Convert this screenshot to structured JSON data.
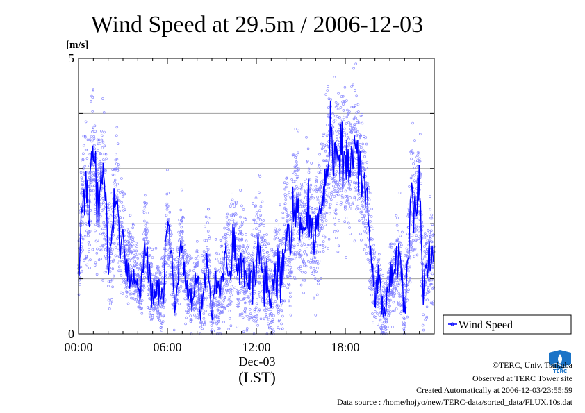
{
  "chart_data": {
    "type": "line",
    "title": "Wind Speed at 29.5m / 2006-12-03",
    "ylabel": "[m/s]",
    "xlabel_date": "Dec-03",
    "xlabel_tz": "(LST)",
    "ylim": [
      0,
      5
    ],
    "xlim_hours": [
      0,
      24
    ],
    "x_ticks": [
      "00:00",
      "06:00",
      "12:00",
      "18:00"
    ],
    "x_tick_hours": [
      0,
      6,
      12,
      18
    ],
    "y_tick_labels": [
      "0",
      "5"
    ],
    "y_gridlines": [
      1,
      2,
      3,
      4
    ],
    "legend": {
      "label": "Wind Speed",
      "placement": "right, outside plot"
    },
    "series": [
      {
        "name": "Wind Speed",
        "color": "#0000ff",
        "scatter_color": "#8080ff",
        "hours": [
          0.0,
          0.25,
          0.5,
          0.75,
          1.0,
          1.25,
          1.5,
          1.75,
          2.0,
          2.25,
          2.5,
          2.75,
          3.0,
          3.25,
          3.5,
          3.75,
          4.0,
          4.25,
          4.5,
          4.75,
          5.0,
          5.25,
          5.5,
          5.75,
          6.0,
          6.25,
          6.5,
          6.75,
          7.0,
          7.25,
          7.5,
          7.75,
          8.0,
          8.25,
          8.5,
          8.75,
          9.0,
          9.25,
          9.5,
          9.75,
          10.0,
          10.25,
          10.5,
          10.75,
          11.0,
          11.25,
          11.5,
          11.75,
          12.0,
          12.25,
          12.5,
          12.75,
          13.0,
          13.25,
          13.5,
          13.75,
          14.0,
          14.25,
          14.5,
          14.75,
          15.0,
          15.25,
          15.5,
          15.75,
          16.0,
          16.25,
          16.5,
          16.75,
          17.0,
          17.25,
          17.5,
          17.75,
          18.0,
          18.25,
          18.5,
          18.75,
          19.0,
          19.25,
          19.5,
          19.75,
          20.0,
          20.25,
          20.5,
          20.75,
          21.0,
          21.25,
          21.5,
          21.75,
          22.0,
          22.25,
          22.5,
          22.75,
          23.0,
          23.25,
          23.5,
          23.75
        ],
        "values": [
          0.9,
          2.4,
          2.6,
          2.2,
          3.5,
          2.3,
          2.6,
          2.8,
          1.4,
          1.6,
          2.7,
          1.9,
          1.7,
          1.2,
          1.3,
          1.1,
          0.9,
          0.8,
          1.9,
          1.0,
          0.7,
          0.8,
          0.7,
          0.7,
          2.2,
          1.4,
          0.6,
          1.2,
          1.7,
          1.0,
          0.7,
          0.7,
          1.1,
          0.4,
          1.0,
          1.4,
          0.3,
          0.9,
          0.7,
          1.1,
          1.4,
          1.2,
          1.8,
          1.0,
          1.4,
          1.0,
          0.8,
          1.1,
          1.3,
          1.6,
          1.2,
          0.9,
          0.6,
          1.2,
          1.1,
          1.0,
          2.0,
          1.5,
          2.1,
          2.4,
          1.8,
          1.9,
          2.3,
          1.8,
          1.7,
          2.3,
          2.4,
          2.9,
          3.4,
          3.1,
          3.0,
          3.3,
          3.1,
          3.0,
          3.4,
          3.3,
          3.0,
          2.6,
          2.3,
          1.3,
          0.7,
          1.0,
          0.4,
          0.5,
          1.0,
          0.9,
          1.4,
          1.2,
          0.4,
          1.5,
          2.6,
          2.3,
          2.9,
          0.9,
          1.3,
          1.4
        ],
        "noise_spread": [
          0.4,
          0.7,
          0.8,
          0.8,
          1.0,
          0.8,
          0.9,
          0.9,
          0.6,
          0.6,
          0.8,
          0.7,
          0.6,
          0.5,
          0.5,
          0.5,
          0.4,
          0.4,
          0.6,
          0.5,
          0.4,
          0.4,
          0.4,
          0.4,
          0.6,
          0.5,
          0.4,
          0.5,
          0.6,
          0.5,
          0.4,
          0.4,
          0.5,
          0.4,
          0.5,
          0.6,
          0.3,
          0.5,
          0.5,
          0.6,
          0.7,
          0.7,
          0.8,
          0.6,
          0.7,
          0.6,
          0.6,
          0.7,
          0.8,
          0.8,
          0.7,
          0.7,
          0.6,
          0.7,
          0.7,
          0.7,
          0.8,
          0.7,
          0.8,
          0.8,
          0.7,
          0.7,
          0.8,
          0.7,
          0.7,
          0.8,
          0.8,
          0.8,
          0.9,
          0.8,
          0.8,
          0.8,
          0.8,
          0.8,
          0.8,
          0.8,
          0.8,
          0.7,
          0.7,
          0.6,
          0.4,
          0.5,
          0.4,
          0.4,
          0.5,
          0.5,
          0.6,
          0.6,
          0.4,
          0.6,
          0.8,
          0.7,
          0.8,
          0.5,
          0.6,
          0.6
        ]
      }
    ]
  },
  "footer": {
    "copyright": "©TERC, Univ. Tsukuba",
    "observed": "Observed at TERC Tower site",
    "created": "Created Automatically at 2006-12-03/23:55:59",
    "source": "Data source : /home/hojyo/new/TERC-data/sorted_data/FLUX.10s.dat",
    "logo_text": "TERC"
  }
}
